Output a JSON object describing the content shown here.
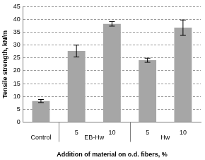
{
  "chart_data": {
    "type": "bar",
    "y_label": "Tensile strength, kN/m",
    "x_label": "Addition of material on o.d. fibers, %",
    "categories": [
      null,
      "5",
      "10",
      "5",
      "10"
    ],
    "category_groups": [
      {
        "label": "Control",
        "members": [
          0
        ]
      },
      {
        "label": "EB-Hw",
        "members": [
          1,
          2
        ]
      },
      {
        "label": "Hw",
        "members": [
          3,
          4
        ]
      }
    ],
    "values": [
      8.2,
      27.7,
      38.3,
      24.1,
      36.8
    ],
    "errors": [
      0.6,
      2.3,
      0.9,
      0.8,
      3.0
    ],
    "color": "#a6a6a6",
    "ylim": [
      0,
      45
    ],
    "yticks": [
      0,
      5,
      10,
      15,
      20,
      25,
      30,
      35,
      40,
      45
    ],
    "grid": true
  }
}
